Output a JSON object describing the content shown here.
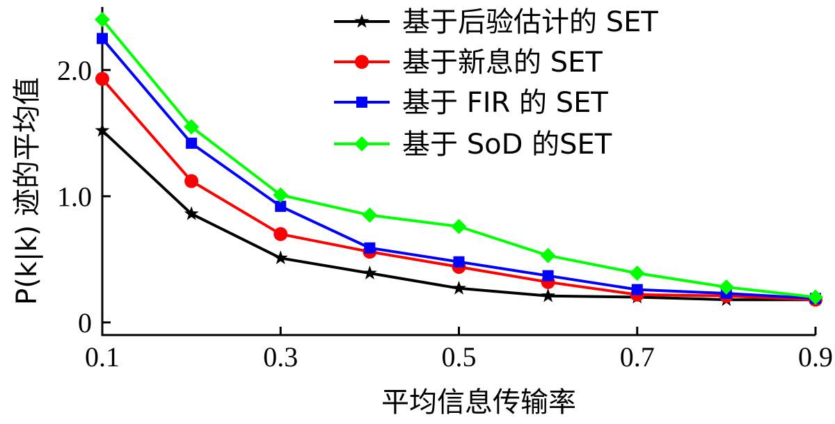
{
  "chart_data": {
    "type": "line",
    "title": "",
    "xlabel": "平均信息传输率",
    "ylabel": "P(k|k) 迹的平均值",
    "x": [
      0.1,
      0.2,
      0.3,
      0.4,
      0.5,
      0.6,
      0.7,
      0.8,
      0.9
    ],
    "xlim": [
      0.1,
      0.9
    ],
    "ylim": [
      -0.1,
      2.5
    ],
    "x_ticks": [
      0.1,
      0.3,
      0.5,
      0.7,
      0.9
    ],
    "x_tick_labels": [
      "0.1",
      "0.3",
      "0.5",
      "0.7",
      "0.9"
    ],
    "y_ticks": [
      0,
      1.0,
      2.0
    ],
    "y_tick_labels": [
      "0",
      "1.0",
      "2.0"
    ],
    "grid": false,
    "legend_position": "top-right",
    "series": [
      {
        "name": "基于后验估计的 SET",
        "color": "#000000",
        "marker": "star",
        "values": [
          1.52,
          0.86,
          0.51,
          0.39,
          0.27,
          0.21,
          0.2,
          0.18,
          0.18
        ]
      },
      {
        "name": "基于新息的 SET",
        "color": "#ff0000",
        "marker": "circle",
        "values": [
          1.93,
          1.12,
          0.7,
          0.56,
          0.44,
          0.32,
          0.22,
          0.21,
          0.18
        ]
      },
      {
        "name": "基于 FIR 的 SET",
        "color": "#0000ff",
        "marker": "square",
        "values": [
          2.25,
          1.42,
          0.92,
          0.59,
          0.48,
          0.37,
          0.26,
          0.23,
          0.19
        ]
      },
      {
        "name": "基于 SoD 的SET",
        "color": "#00ff00",
        "marker": "diamond",
        "values": [
          2.4,
          1.55,
          1.01,
          0.85,
          0.76,
          0.53,
          0.39,
          0.28,
          0.2
        ]
      }
    ]
  }
}
